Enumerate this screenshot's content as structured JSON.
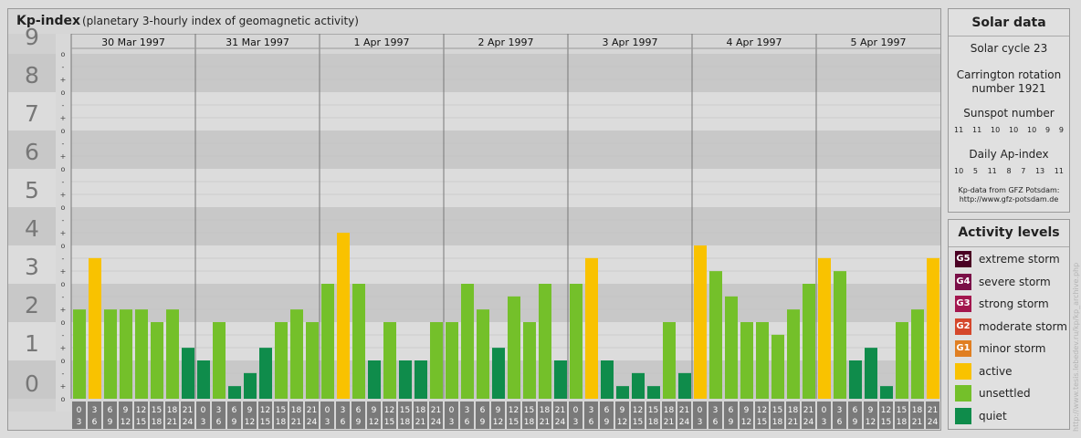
{
  "chart_data": {
    "type": "bar",
    "title": "Kp-index",
    "subtitle": "(planetary 3-hourly index of geomagnetic activity)",
    "days": [
      "30 Mar 1997",
      "31 Mar 1997",
      "1 Apr 1997",
      "2 Apr 1997",
      "3 Apr 1997",
      "4 Apr 1997",
      "5 Apr 1997"
    ],
    "hour_starts": [
      "0",
      "3",
      "6",
      "9",
      "12",
      "15",
      "18",
      "21"
    ],
    "hour_ends": [
      "3",
      "6",
      "9",
      "12",
      "15",
      "18",
      "21",
      "24"
    ],
    "y_ticks": [
      "0",
      "1",
      "2",
      "3",
      "4",
      "5",
      "6",
      "7",
      "8",
      "9"
    ],
    "minor_ticks": [
      "o",
      "+",
      "-"
    ],
    "ylim": [
      0,
      9
    ],
    "values": [
      2.33,
      3.67,
      2.33,
      2.33,
      2.33,
      2.0,
      2.33,
      1.33,
      1.0,
      2.0,
      0.33,
      0.67,
      1.33,
      2.0,
      2.33,
      2.0,
      3.0,
      4.33,
      3.0,
      1.0,
      2.0,
      1.0,
      1.0,
      2.0,
      2.0,
      3.0,
      2.33,
      1.33,
      2.67,
      2.0,
      3.0,
      1.0,
      3.0,
      3.67,
      1.0,
      0.33,
      0.67,
      0.33,
      2.0,
      0.67,
      4.0,
      3.33,
      2.67,
      2.0,
      2.0,
      1.67,
      2.33,
      3.0,
      3.67,
      3.33,
      1.0,
      1.33,
      0.33,
      2.0,
      2.33,
      3.67
    ],
    "grid": true
  },
  "colors": {
    "quiet": "#0f8c4b",
    "unsettled": "#74c02a",
    "active": "#f9c200",
    "minor_storm": "#e07f22",
    "moderate_storm": "#d5472b",
    "strong_storm": "#a3174e",
    "severe_storm": "#7a0f47",
    "extreme_storm": "#4a0023"
  },
  "solar": {
    "title": "Solar data",
    "cycle": "Solar cycle 23",
    "carrington_line1": "Carrington rotation",
    "carrington_line2": "number 1921",
    "sunspot_label": "Sunspot number",
    "sunspot_values": [
      "11",
      "11",
      "10",
      "10",
      "10",
      "9",
      "9"
    ],
    "ap_label": "Daily Ap-index",
    "ap_values": [
      "10",
      "5",
      "11",
      "8",
      "7",
      "13",
      "11"
    ],
    "source_line1": "Kp-data from GFZ Potsdam:",
    "source_line2": "http://www.gfz-potsdam.de"
  },
  "levels": {
    "title": "Activity levels",
    "items": [
      {
        "code": "G5",
        "label": "extreme storm",
        "color": "#4a0023"
      },
      {
        "code": "G4",
        "label": "severe storm",
        "color": "#7a0f47"
      },
      {
        "code": "G3",
        "label": "strong storm",
        "color": "#a3174e"
      },
      {
        "code": "G2",
        "label": "moderate storm",
        "color": "#d5472b"
      },
      {
        "code": "G1",
        "label": "minor storm",
        "color": "#e07f22"
      },
      {
        "code": "",
        "label": "active",
        "color": "#f9c200"
      },
      {
        "code": "",
        "label": "unsettled",
        "color": "#74c02a"
      },
      {
        "code": "",
        "label": "quiet",
        "color": "#0f8c4b"
      }
    ]
  },
  "watermark": "http://www.tesis.lebedev.ru/kp/kp_archive.php"
}
